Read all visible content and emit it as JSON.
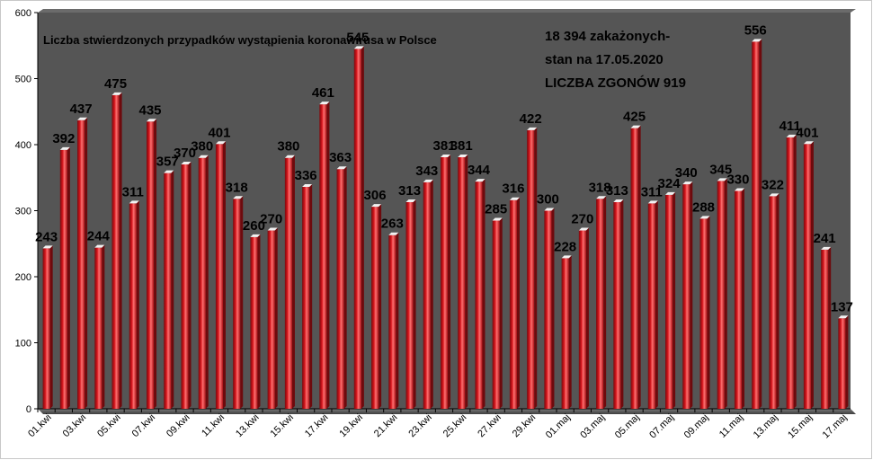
{
  "chart_data": {
    "type": "bar",
    "title": "Liczba stwierdzonych przypadków wystąpienia koronawirusa w Polsce",
    "annotations": [
      "18 394 zakażonych-",
      "stan na 17.05.2020",
      "LICZBA ZGONÓW  919"
    ],
    "categories": [
      "01.kwi",
      "02.kwi",
      "03.kwi",
      "04.kwi",
      "05.kwi",
      "06.kwi",
      "07.kwi",
      "08.kwi",
      "09.kwi",
      "10.kwi",
      "11.kwi",
      "12.kwi",
      "13.kwi",
      "14.kwi",
      "15.kwi",
      "16.kwi",
      "17.kwi",
      "18.kwi",
      "19.kwi",
      "20.kwi",
      "21.kwi",
      "22.kwi",
      "23.kwi",
      "24.kwi",
      "25.kwi",
      "26.kwi",
      "27.kwi",
      "28.kwi",
      "29.kwi",
      "30.kwi",
      "01.maj",
      "02.maj",
      "03.maj",
      "04.maj",
      "05.maj",
      "06.maj",
      "07.maj",
      "08.maj",
      "09.maj",
      "10.maj",
      "11.maj",
      "12.maj",
      "13.maj",
      "14.maj",
      "15.maj",
      "16.maj",
      "17.maj"
    ],
    "tick_labels": [
      "01.kwi",
      "03.kwi",
      "05.kwi",
      "07.kwi",
      "09.kwi",
      "11.kwi",
      "13.kwi",
      "15.kwi",
      "17.kwi",
      "19.kwi",
      "21.kwi",
      "23.kwi",
      "25.kwi",
      "27.kwi",
      "29.kwi",
      "01.maj",
      "03.maj",
      "05.maj",
      "07.maj",
      "09.maj",
      "11.maj",
      "13.maj",
      "15.maj",
      "17.maj"
    ],
    "values": [
      243,
      392,
      437,
      244,
      475,
      311,
      435,
      357,
      370,
      380,
      401,
      318,
      260,
      270,
      380,
      336,
      461,
      363,
      545,
      306,
      263,
      313,
      343,
      381,
      381,
      344,
      285,
      316,
      422,
      300,
      228,
      270,
      318,
      313,
      425,
      311,
      324,
      340,
      288,
      345,
      330,
      556,
      322,
      411,
      401,
      241,
      137
    ],
    "ylim": [
      0,
      600
    ],
    "yticks": [
      0,
      100,
      200,
      300,
      400,
      500,
      600
    ],
    "grid": false,
    "colors": {
      "plot_background": "#555555",
      "bar": "#c8151b",
      "bar_highlight": "#ff8080",
      "bar_top": "#f2f2f2",
      "text": "#000000"
    }
  }
}
